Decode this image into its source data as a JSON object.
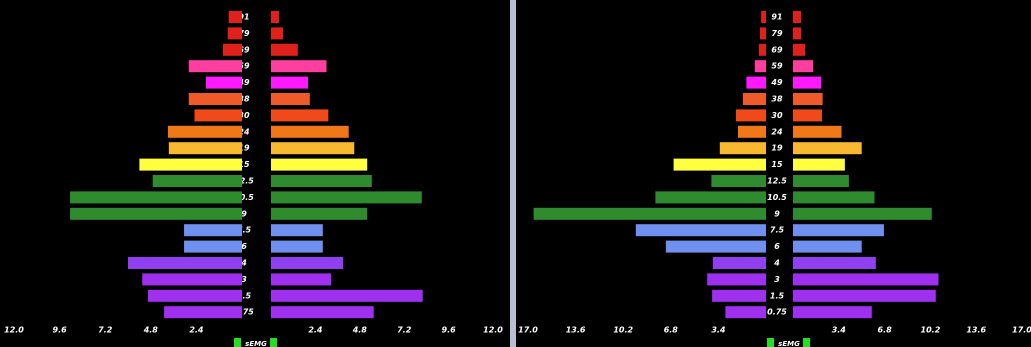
{
  "chart_data": [
    {
      "type": "butterfly",
      "categories": [
        "91",
        "79",
        "69",
        "59",
        "49",
        "38",
        "30",
        "24",
        "19",
        "15",
        "12.5",
        "10.5",
        "9",
        "7.5",
        "6",
        "4",
        "3",
        "1.5",
        "0.75"
      ],
      "colors": [
        "#e0201a",
        "#e0201a",
        "#e0201a",
        "#ff3fa0",
        "#ff19ff",
        "#f05a28",
        "#f04a1a",
        "#f07818",
        "#f8b830",
        "#ffff40",
        "#2e8b2e",
        "#2e8b2e",
        "#2e8b2e",
        "#7090f0",
        "#7090f0",
        "#9040f0",
        "#a030f0",
        "#a030f0",
        "#a030f0"
      ],
      "series": [
        {
          "side": "left",
          "values": [
            0.7,
            0.75,
            1.0,
            2.8,
            1.9,
            2.8,
            2.5,
            3.9,
            3.85,
            5.4,
            4.7,
            9.05,
            9.05,
            3.05,
            3.05,
            6.0,
            5.25,
            4.95,
            4.1
          ],
          "xlim": [
            0,
            12
          ],
          "xticks": [
            {
              "value": 12,
              "label": "12.0"
            },
            9.6,
            7.2,
            4.8,
            2.4
          ]
        },
        {
          "side": "right",
          "values": [
            0.43,
            0.65,
            1.45,
            3.0,
            2.0,
            2.1,
            3.1,
            4.2,
            4.5,
            5.2,
            5.45,
            8.15,
            5.2,
            2.8,
            2.8,
            3.9,
            3.25,
            8.2,
            5.55
          ],
          "xlim": [
            0,
            12
          ],
          "xticks": [
            2.4,
            4.8,
            7.2,
            9.6,
            {
              "value": 12,
              "label": "12.0"
            }
          ]
        }
      ],
      "label": "sEMG"
    },
    {
      "type": "butterfly",
      "categories": [
        "91",
        "79",
        "69",
        "59",
        "49",
        "38",
        "30",
        "24",
        "19",
        "15",
        "12.5",
        "10.5",
        "9",
        "7.5",
        "6",
        "4",
        "3",
        "1.5",
        "0.75"
      ],
      "colors": [
        "#e0201a",
        "#e0201a",
        "#e0201a",
        "#ff3fa0",
        "#ff19ff",
        "#f05a28",
        "#f04a1a",
        "#f07818",
        "#f8b830",
        "#ffff40",
        "#2e8b2e",
        "#2e8b2e",
        "#2e8b2e",
        "#7090f0",
        "#7090f0",
        "#9040f0",
        "#a030f0",
        "#a030f0",
        "#a030f0"
      ],
      "series": [
        {
          "side": "left",
          "values": [
            0.35,
            0.43,
            0.5,
            0.8,
            1.4,
            1.65,
            2.15,
            2.0,
            3.3,
            6.6,
            3.9,
            7.9,
            16.6,
            9.3,
            7.15,
            3.8,
            4.2,
            3.85,
            2.9
          ],
          "xlim": [
            0,
            17
          ],
          "xticks": [
            {
              "value": 17,
              "label": "17.0"
            },
            13.6,
            10.2,
            6.8,
            3.4
          ]
        },
        {
          "side": "right",
          "values": [
            0.6,
            0.6,
            0.9,
            1.5,
            2.1,
            2.2,
            2.15,
            3.6,
            5.1,
            3.85,
            4.15,
            6.05,
            10.3,
            6.75,
            5.1,
            6.15,
            10.8,
            10.6,
            5.85
          ],
          "xlim": [
            0,
            17
          ],
          "xticks": [
            3.4,
            6.8,
            10.2,
            13.6,
            {
              "value": 17,
              "label": "17.0"
            }
          ]
        }
      ],
      "label": "sEMG"
    }
  ]
}
